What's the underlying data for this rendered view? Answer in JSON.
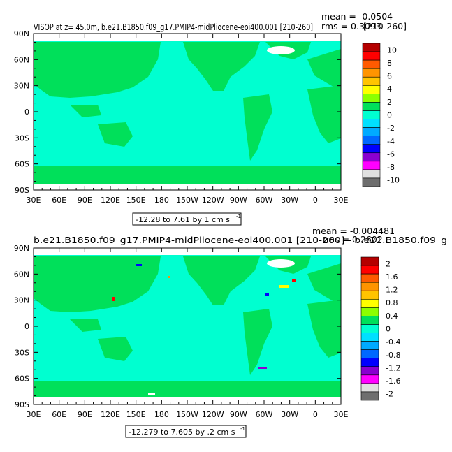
{
  "chart_data": [
    {
      "type": "heatmap",
      "title": "VISOP at z=  45.0m, b.e21.B1850.f09_g17.PMIP4-midPliocene-eoi400.001 [210-260]",
      "stat_mean": "mean = -0.0504",
      "stat_rms": "rms = 0.3093",
      "x_ticks": [
        "30E",
        "60E",
        "90E",
        "120E",
        "150E",
        "180",
        "150W",
        "120W",
        "90W",
        "60W",
        "30W",
        "0",
        "30E"
      ],
      "y_ticks": [
        "90N",
        "60N",
        "30N",
        "0",
        "30S",
        "60S",
        "90S"
      ],
      "xlim": [
        30,
        390
      ],
      "ylim": [
        -90,
        90
      ],
      "contour_info": "-12.28 to 7.61 by 1 cm s",
      "contour_unit_exp": "-1",
      "colorbar": {
        "labels": [
          "10",
          "8",
          "6",
          "4",
          "2",
          "0",
          "-2",
          "-4",
          "-6",
          "-8",
          "-10"
        ],
        "values": [
          10,
          8,
          6,
          4,
          2,
          0,
          -2,
          -4,
          -6,
          -8,
          -10
        ],
        "colors": [
          "#b50000",
          "#ff0000",
          "#ff5a00",
          "#ff9400",
          "#ffc400",
          "#ffff00",
          "#8cff00",
          "#00e05a",
          "#00ffd0",
          "#00e0ff",
          "#00aaff",
          "#0068ff",
          "#0000ff",
          "#8a00d0",
          "#ff00ff",
          "#e0e0e0",
          "#6e6e6e"
        ]
      }
    },
    {
      "type": "heatmap",
      "title": "b.e21.B1850.f09_g17.PMIP4-midPliocene-eoi400.001 [210-260] - b.e21.B1850.f09_g",
      "stat_mean": "mean = -0.004481",
      "stat_rms": "rms = 0.2602",
      "x_ticks": [
        "30E",
        "60E",
        "90E",
        "120E",
        "150E",
        "180",
        "150W",
        "120W",
        "90W",
        "60W",
        "30W",
        "0",
        "30E"
      ],
      "y_ticks": [
        "90N",
        "60N",
        "30N",
        "0",
        "30S",
        "60S",
        "90S"
      ],
      "xlim": [
        30,
        390
      ],
      "ylim": [
        -90,
        90
      ],
      "contour_info": "-12.279 to 7.605 by .2 cm s",
      "contour_unit_exp": "-1",
      "colorbar": {
        "labels": [
          "2",
          "1.6",
          "1.2",
          "0.8",
          "0.4",
          "0",
          "-0.4",
          "-0.8",
          "-1.2",
          "-1.6",
          "-2"
        ],
        "values": [
          2,
          1.6,
          1.2,
          0.8,
          0.4,
          0,
          -0.4,
          -0.8,
          -1.2,
          -1.6,
          -2
        ],
        "colors": [
          "#b50000",
          "#ff0000",
          "#ff5a00",
          "#ff9400",
          "#ffc400",
          "#ffff00",
          "#8cff00",
          "#00e05a",
          "#00ffd0",
          "#00e0ff",
          "#00aaff",
          "#0068ff",
          "#0000ff",
          "#8a00d0",
          "#ff00ff",
          "#e0e0e0",
          "#6e6e6e"
        ]
      }
    }
  ]
}
